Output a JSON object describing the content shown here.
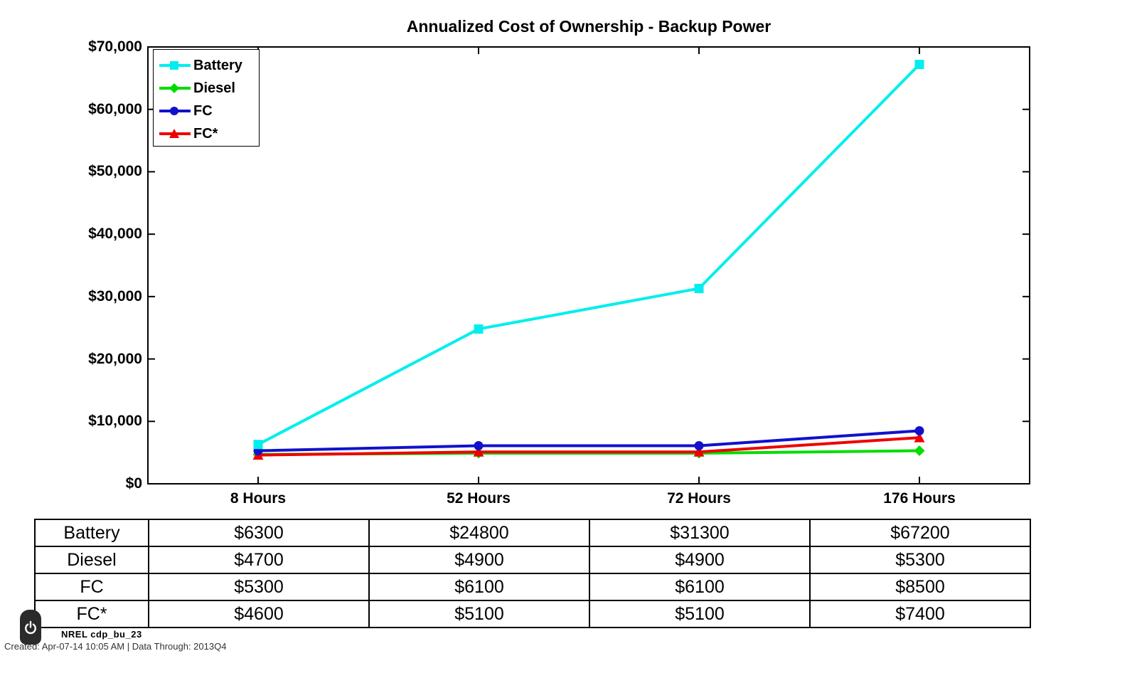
{
  "title": "Annualized Cost of Ownership - Backup Power",
  "chart_data": {
    "type": "line",
    "title": "Annualized Cost of Ownership - Backup Power",
    "categories": [
      "8 Hours",
      "52 Hours",
      "72 Hours",
      "176 Hours"
    ],
    "series": [
      {
        "name": "Battery",
        "color": "#00EEEE",
        "marker": "square",
        "values": [
          6300,
          24800,
          31300,
          67200
        ]
      },
      {
        "name": "Diesel",
        "color": "#00DD00",
        "marker": "diamond",
        "values": [
          4700,
          4900,
          4900,
          5300
        ]
      },
      {
        "name": "FC",
        "color": "#1111CC",
        "marker": "circle",
        "values": [
          5300,
          6100,
          6100,
          8500
        ]
      },
      {
        "name": "FC*",
        "color": "#EE0000",
        "marker": "triangle",
        "values": [
          4600,
          5100,
          5100,
          7400
        ]
      }
    ],
    "xlabel": "",
    "ylabel": "",
    "ylim": [
      0,
      70000
    ],
    "ytick_interval": 10000,
    "ytick_labels": [
      "$0",
      "$10,000",
      "$20,000",
      "$30,000",
      "$40,000",
      "$50,000",
      "$60,000",
      "$70,000"
    ],
    "legend_position": "top-left",
    "grid": false,
    "axis_color": "#000000",
    "background": "#FFFFFF"
  },
  "table": {
    "rows": [
      {
        "label": "Battery",
        "values": [
          "$6300",
          "$24800",
          "$31300",
          "$67200"
        ]
      },
      {
        "label": "Diesel",
        "values": [
          "$4700",
          "$4900",
          "$4900",
          "$5300"
        ]
      },
      {
        "label": "FC",
        "values": [
          "$5300",
          "$6100",
          "$6100",
          "$8500"
        ]
      },
      {
        "label": "FC*",
        "values": [
          "$4600",
          "$5100",
          "$5100",
          "$7400"
        ]
      }
    ]
  },
  "footer": {
    "stamp": "NREL cdp_bu_23",
    "created": "Created: Apr-07-14 10:05 AM | Data Through: 2013Q4",
    "power_icon": "power",
    "badge_color": "#2B2B2B"
  }
}
